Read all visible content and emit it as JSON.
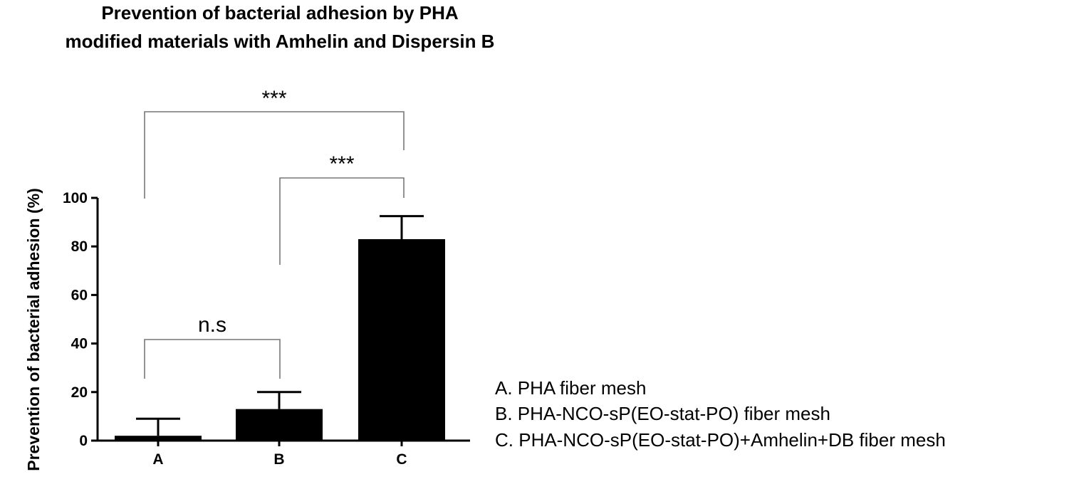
{
  "chart_data": {
    "type": "bar",
    "title_lines": [
      "Prevention of bacterial adhesion by PHA",
      "modified materials with Amhelin and Dispersin B"
    ],
    "xlabel": "",
    "ylabel": "Prevention of bacterial adhesion (%)",
    "categories": [
      "A",
      "B",
      "C"
    ],
    "values": [
      2,
      13,
      83
    ],
    "error": [
      7,
      7,
      9.5
    ],
    "ylim": [
      0,
      100
    ],
    "yticks": [
      "0",
      "20",
      "40",
      "60",
      "80",
      "100"
    ],
    "bar_color": "#000000",
    "comparisons": [
      {
        "from": "A",
        "to": "B",
        "label": "n.s"
      },
      {
        "from": "B",
        "to": "C",
        "label": "***"
      },
      {
        "from": "A",
        "to": "C",
        "label": "***"
      }
    ],
    "legend": [
      "A. PHA fiber mesh",
      "B. PHA-NCO-sP(EO-stat-PO) fiber mesh",
      "C. PHA-NCO-sP(EO-stat-PO)+Amhelin+DB fiber mesh"
    ]
  }
}
